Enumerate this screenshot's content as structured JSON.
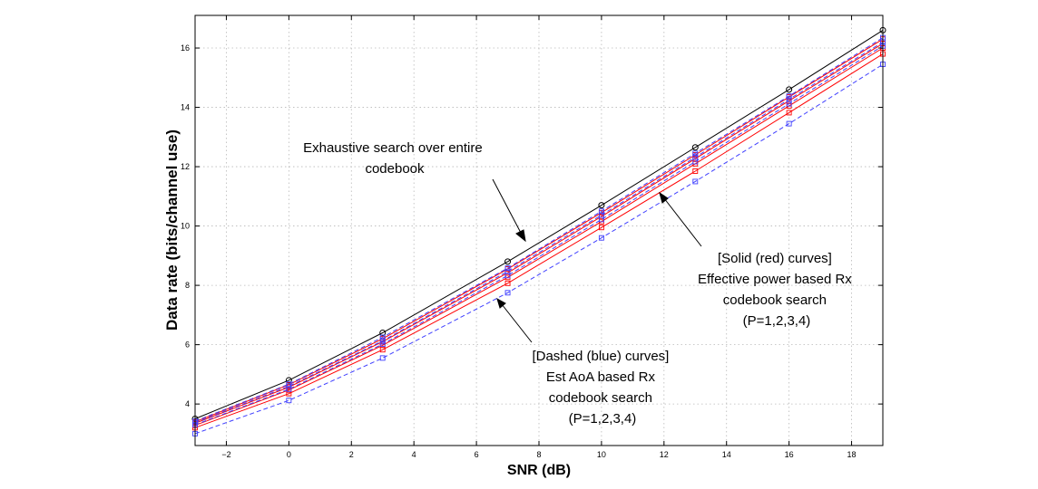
{
  "chart_data": {
    "type": "line",
    "xlabel": "SNR (dB)",
    "ylabel": "Data rate (bits/channel use)",
    "xlim": [
      -3,
      19
    ],
    "ylim": [
      2.6,
      17.1
    ],
    "xticks": [
      -2,
      0,
      2,
      4,
      6,
      8,
      10,
      12,
      14,
      16,
      18
    ],
    "yticks": [
      4,
      6,
      8,
      10,
      12,
      14,
      16
    ],
    "grid": true,
    "x": [
      -3,
      0,
      3,
      7,
      10,
      13,
      16,
      19
    ],
    "series": [
      {
        "color": "#000000",
        "style": "solid",
        "marker": "circle",
        "values": [
          3.5,
          4.8,
          6.4,
          8.8,
          10.7,
          12.65,
          14.6,
          16.6
        ]
      },
      {
        "color": "#ff0000",
        "style": "solid",
        "marker": "square",
        "values": [
          3.4,
          4.65,
          6.2,
          8.55,
          10.45,
          12.4,
          14.35,
          16.3
        ]
      },
      {
        "color": "#ff0000",
        "style": "solid",
        "marker": "square",
        "values": [
          3.35,
          4.57,
          6.1,
          8.42,
          10.32,
          12.27,
          14.22,
          16.15
        ]
      },
      {
        "color": "#ff0000",
        "style": "solid",
        "marker": "square",
        "values": [
          3.28,
          4.47,
          5.98,
          8.27,
          10.15,
          12.1,
          14.05,
          16.0
        ]
      },
      {
        "color": "#ff0000",
        "style": "solid",
        "marker": "square",
        "values": [
          3.2,
          4.35,
          5.83,
          8.07,
          9.95,
          11.85,
          13.82,
          15.8
        ]
      },
      {
        "color": "#4040ff",
        "style": "dashed",
        "marker": "square",
        "values": [
          3.42,
          4.67,
          6.25,
          8.58,
          10.5,
          12.45,
          14.38,
          16.35
        ]
      },
      {
        "color": "#4040ff",
        "style": "dashed",
        "marker": "square",
        "values": [
          3.37,
          4.6,
          6.13,
          8.47,
          10.37,
          12.32,
          14.27,
          16.2
        ]
      },
      {
        "color": "#4040ff",
        "style": "dashed",
        "marker": "square",
        "values": [
          3.3,
          4.5,
          6.02,
          8.33,
          10.22,
          12.17,
          14.12,
          16.07
        ]
      },
      {
        "color": "#4040ff",
        "style": "dashed",
        "marker": "square",
        "values": [
          3.0,
          4.12,
          5.55,
          7.75,
          9.6,
          11.5,
          13.45,
          15.45
        ]
      }
    ],
    "annotations": [
      {
        "lines": [
          "Exhaustive search over entire",
          "codebook"
        ]
      },
      {
        "lines": [
          "[Solid (red) curves]",
          "Effective power based Rx",
          "codebook search",
          "(P=1,2,3,4)"
        ]
      },
      {
        "lines": [
          "[Dashed (blue) curves]",
          "Est AoA based Rx",
          "codebook search",
          "(P=1,2,3,4)"
        ]
      }
    ]
  }
}
